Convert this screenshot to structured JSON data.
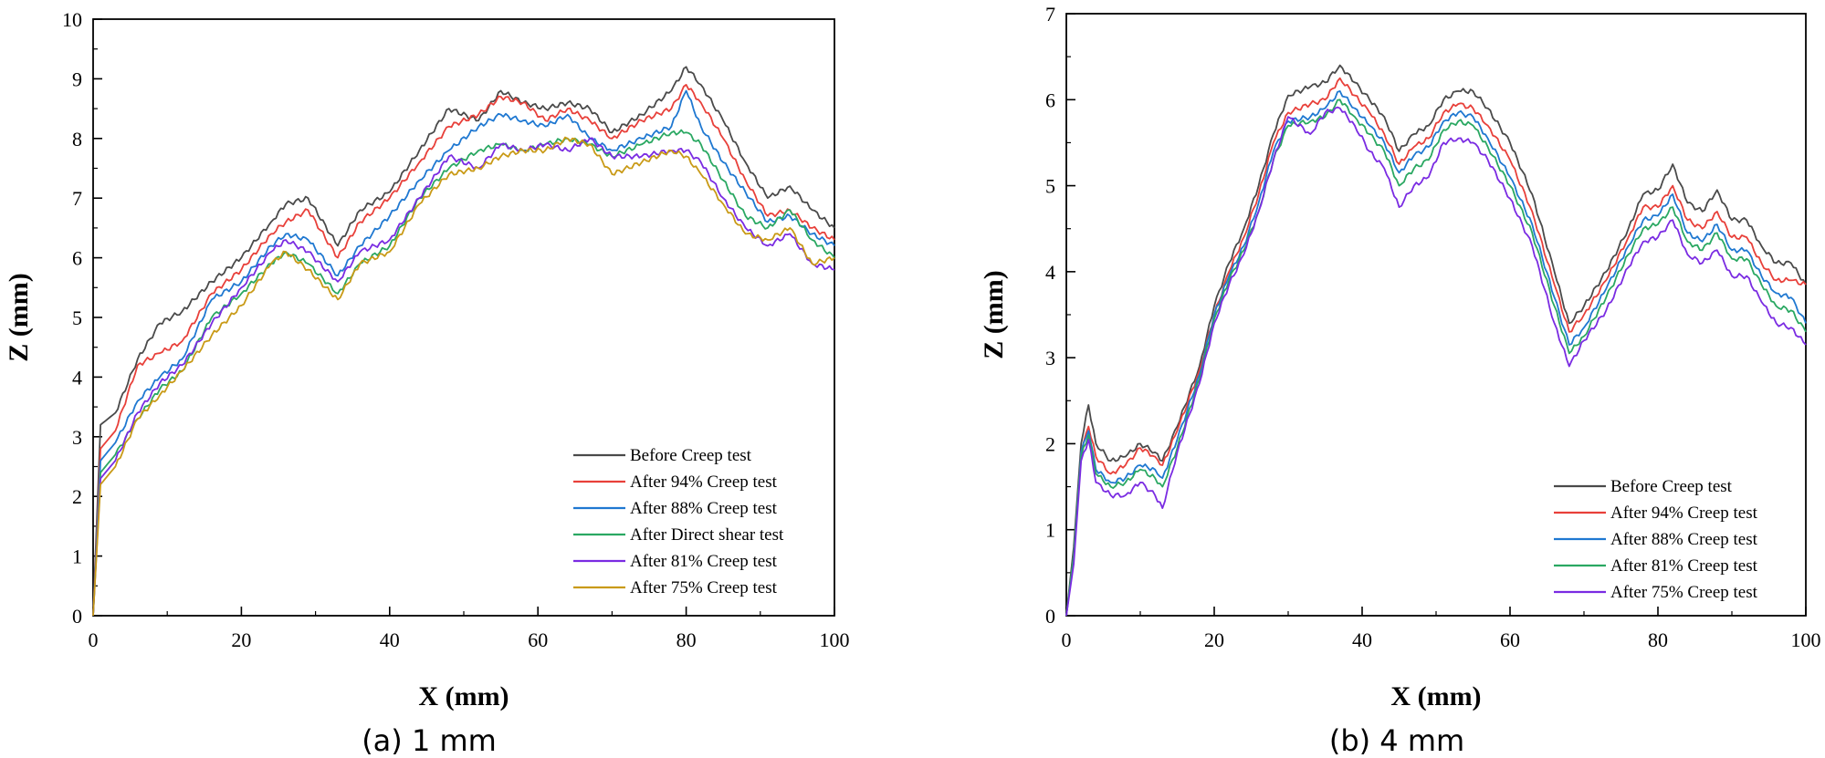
{
  "colors": {
    "before": "#4a4a4a",
    "after94": "#e8403a",
    "after88": "#1f78d1",
    "direct": "#2aa862",
    "after81": "#7a2be2",
    "after75": "#c99a16"
  },
  "chart_data": [
    {
      "type": "line",
      "caption": "(a) 1 mm",
      "xlabel": "X (mm)",
      "ylabel": "Z (mm)",
      "xlim": [
        0,
        100
      ],
      "ylim": [
        0,
        10
      ],
      "xticks": [
        0,
        20,
        40,
        60,
        80,
        100
      ],
      "yticks": [
        0,
        1,
        2,
        3,
        4,
        5,
        6,
        7,
        8,
        9,
        10
      ],
      "legend_position": "bottom-right",
      "x": [
        0,
        1,
        3,
        6,
        9,
        12,
        16,
        20,
        24,
        26,
        29,
        33,
        36,
        40,
        44,
        48,
        52,
        55,
        58,
        61,
        64,
        67,
        70,
        74,
        78,
        80,
        82,
        85,
        88,
        91,
        94,
        97,
        100
      ],
      "series": [
        {
          "name": "Before Creep test",
          "color_key": "before",
          "values": [
            0,
            3.2,
            3.4,
            4.3,
            4.9,
            5.1,
            5.6,
            6.0,
            6.6,
            6.9,
            7.0,
            6.2,
            6.8,
            7.1,
            7.8,
            8.5,
            8.3,
            8.8,
            8.6,
            8.5,
            8.6,
            8.5,
            8.1,
            8.4,
            8.8,
            9.2,
            8.9,
            8.3,
            7.6,
            7.0,
            7.2,
            6.8,
            6.5
          ]
        },
        {
          "name": "After 94% Creep test",
          "color_key": "after94",
          "values": [
            0,
            2.8,
            3.1,
            4.2,
            4.4,
            4.6,
            5.4,
            5.8,
            6.4,
            6.6,
            6.8,
            6.0,
            6.6,
            7.0,
            7.6,
            8.2,
            8.4,
            8.7,
            8.6,
            8.3,
            8.5,
            8.3,
            8.0,
            8.3,
            8.5,
            8.9,
            8.6,
            8.0,
            7.3,
            6.7,
            6.8,
            6.5,
            6.3
          ]
        },
        {
          "name": "After 88% Creep test",
          "color_key": "after88",
          "values": [
            0,
            2.6,
            2.9,
            3.6,
            4.0,
            4.3,
            5.3,
            5.6,
            6.2,
            6.4,
            6.3,
            5.7,
            6.2,
            6.7,
            7.3,
            7.8,
            8.2,
            8.4,
            8.3,
            8.2,
            8.4,
            8.0,
            7.8,
            8.0,
            8.2,
            8.8,
            8.2,
            7.6,
            7.1,
            6.6,
            6.7,
            6.4,
            6.2
          ]
        },
        {
          "name": "After Direct shear test",
          "color_key": "direct",
          "values": [
            0,
            2.4,
            2.7,
            3.3,
            3.8,
            4.1,
            5.0,
            5.4,
            5.9,
            6.1,
            5.9,
            5.4,
            5.9,
            6.2,
            7.0,
            7.5,
            7.8,
            7.9,
            7.8,
            7.9,
            8.0,
            7.9,
            7.7,
            7.9,
            8.1,
            8.1,
            7.9,
            7.3,
            6.7,
            6.5,
            6.8,
            6.3,
            6.0
          ]
        },
        {
          "name": "After 81% Creep test",
          "color_key": "after81",
          "values": [
            0,
            2.3,
            2.6,
            3.4,
            3.9,
            4.2,
            4.9,
            5.5,
            6.1,
            6.3,
            6.1,
            5.6,
            6.1,
            6.3,
            7.0,
            7.7,
            7.5,
            7.9,
            7.8,
            7.9,
            7.8,
            8.0,
            7.7,
            7.7,
            7.8,
            7.8,
            7.6,
            7.0,
            6.5,
            6.2,
            6.4,
            5.9,
            5.8
          ]
        },
        {
          "name": "After 75% Creep test",
          "color_key": "after75",
          "values": [
            0,
            2.2,
            2.5,
            3.3,
            3.7,
            4.1,
            4.7,
            5.2,
            5.9,
            6.1,
            5.8,
            5.3,
            5.9,
            6.1,
            6.9,
            7.4,
            7.5,
            7.7,
            7.8,
            7.8,
            8.0,
            7.9,
            7.4,
            7.6,
            7.8,
            7.7,
            7.4,
            6.9,
            6.4,
            6.3,
            6.5,
            5.9,
            6.0
          ]
        }
      ]
    },
    {
      "type": "line",
      "caption": "(b) 4 mm",
      "xlabel": "X (mm)",
      "ylabel": "Z (mm)",
      "xlim": [
        0,
        100
      ],
      "ylim": [
        0,
        7
      ],
      "xticks": [
        0,
        20,
        40,
        60,
        80,
        100
      ],
      "yticks": [
        0,
        1,
        2,
        3,
        4,
        5,
        6,
        7
      ],
      "legend_position": "bottom-right",
      "x": [
        0,
        1,
        2,
        3,
        4,
        6,
        8,
        10,
        12,
        13,
        15,
        18,
        20,
        22,
        24,
        26,
        28,
        30,
        33,
        35,
        37,
        39,
        41,
        43,
        45,
        47,
        49,
        51,
        53,
        55,
        57,
        60,
        63,
        66,
        68,
        70,
        73,
        76,
        78,
        80,
        82,
        84,
        86,
        88,
        90,
        92,
        94,
        96,
        98,
        100
      ],
      "series": [
        {
          "name": "Before Creep test",
          "color_key": "before",
          "values": [
            0,
            0.8,
            2.0,
            2.45,
            2.0,
            1.8,
            1.85,
            2.0,
            1.9,
            1.8,
            2.2,
            2.9,
            3.6,
            4.1,
            4.5,
            5.0,
            5.6,
            6.05,
            6.15,
            6.2,
            6.4,
            6.2,
            6.0,
            5.8,
            5.4,
            5.6,
            5.7,
            6.0,
            6.1,
            6.1,
            5.9,
            5.5,
            4.9,
            4.0,
            3.4,
            3.6,
            4.0,
            4.5,
            4.9,
            4.95,
            5.25,
            4.8,
            4.7,
            4.95,
            4.6,
            4.6,
            4.3,
            4.1,
            4.1,
            3.85
          ]
        },
        {
          "name": "After 94% Creep test",
          "color_key": "after94",
          "values": [
            0,
            0.7,
            1.9,
            2.2,
            1.85,
            1.65,
            1.75,
            1.95,
            1.85,
            1.75,
            2.15,
            2.85,
            3.5,
            4.0,
            4.4,
            4.9,
            5.5,
            5.85,
            5.95,
            6.0,
            6.25,
            6.05,
            5.85,
            5.6,
            5.25,
            5.45,
            5.55,
            5.85,
            5.95,
            5.9,
            5.7,
            5.3,
            4.7,
            3.85,
            3.3,
            3.5,
            3.9,
            4.4,
            4.75,
            4.75,
            5.0,
            4.6,
            4.5,
            4.7,
            4.4,
            4.4,
            4.1,
            3.9,
            3.9,
            3.85
          ]
        },
        {
          "name": "After 88% Creep test",
          "color_key": "after88",
          "values": [
            0,
            0.7,
            1.9,
            2.15,
            1.7,
            1.55,
            1.6,
            1.75,
            1.7,
            1.6,
            2.05,
            2.8,
            3.5,
            3.95,
            4.3,
            4.8,
            5.4,
            5.75,
            5.8,
            5.9,
            6.1,
            5.9,
            5.7,
            5.5,
            5.15,
            5.35,
            5.45,
            5.75,
            5.85,
            5.8,
            5.55,
            5.1,
            4.55,
            3.7,
            3.15,
            3.35,
            3.8,
            4.3,
            4.6,
            4.65,
            4.9,
            4.45,
            4.35,
            4.55,
            4.25,
            4.25,
            3.95,
            3.75,
            3.7,
            3.4
          ]
        },
        {
          "name": "After 81% Creep test",
          "color_key": "direct",
          "values": [
            0,
            0.7,
            1.85,
            2.1,
            1.65,
            1.5,
            1.55,
            1.7,
            1.6,
            1.5,
            1.95,
            2.75,
            3.45,
            3.9,
            4.25,
            4.7,
            5.3,
            5.7,
            5.75,
            5.8,
            6.0,
            5.8,
            5.6,
            5.4,
            5.0,
            5.2,
            5.3,
            5.65,
            5.75,
            5.7,
            5.45,
            5.0,
            4.45,
            3.6,
            3.05,
            3.25,
            3.7,
            4.2,
            4.5,
            4.55,
            4.75,
            4.35,
            4.25,
            4.45,
            4.15,
            4.15,
            3.85,
            3.6,
            3.55,
            3.3
          ]
        },
        {
          "name": "After 75% Creep test",
          "color_key": "after81",
          "values": [
            0,
            0.6,
            1.8,
            2.05,
            1.55,
            1.4,
            1.4,
            1.55,
            1.4,
            1.25,
            1.9,
            2.7,
            3.4,
            3.85,
            4.2,
            4.7,
            5.3,
            5.8,
            5.6,
            5.85,
            5.9,
            5.7,
            5.4,
            5.2,
            4.75,
            5.0,
            5.1,
            5.5,
            5.55,
            5.5,
            5.3,
            4.85,
            4.3,
            3.4,
            2.9,
            3.2,
            3.55,
            4.05,
            4.35,
            4.4,
            4.6,
            4.2,
            4.1,
            4.25,
            3.95,
            3.95,
            3.65,
            3.4,
            3.35,
            3.15
          ]
        }
      ]
    }
  ]
}
